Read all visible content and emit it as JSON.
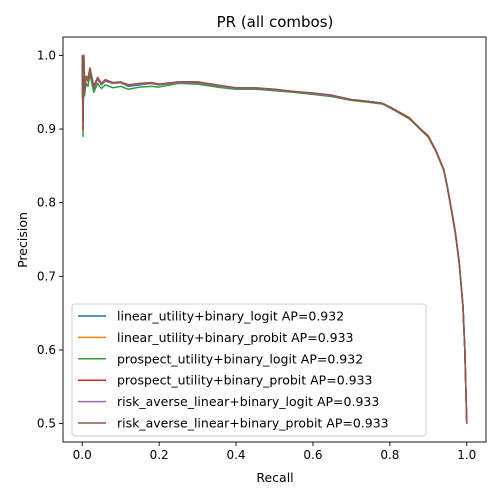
{
  "chart_data": {
    "type": "line",
    "title": "PR (all combos)",
    "xlabel": "Recall",
    "ylabel": "Precision",
    "xlim": [
      -0.05,
      1.05
    ],
    "ylim": [
      0.475,
      1.025
    ],
    "xticks": [
      0.0,
      0.2,
      0.4,
      0.6,
      0.8,
      1.0
    ],
    "xtick_labels": [
      "0.0",
      "0.2",
      "0.4",
      "0.6",
      "0.8",
      "1.0"
    ],
    "yticks": [
      0.5,
      0.6,
      0.7,
      0.8,
      0.9,
      1.0
    ],
    "ytick_labels": [
      "0.5",
      "0.6",
      "0.7",
      "0.8",
      "0.9",
      "1.0"
    ],
    "grid": false,
    "legend_position": "lower-left",
    "series": [
      {
        "name": "linear_utility+binary_logit AP=0.932",
        "color": "#1f77b4",
        "x": [
          0.0,
          0.002,
          0.004,
          0.006,
          0.01,
          0.015,
          0.02,
          0.03,
          0.04,
          0.05,
          0.06,
          0.08,
          0.1,
          0.12,
          0.15,
          0.18,
          0.2,
          0.25,
          0.3,
          0.35,
          0.4,
          0.45,
          0.5,
          0.55,
          0.6,
          0.65,
          0.7,
          0.75,
          0.78,
          0.8,
          0.85,
          0.88,
          0.9,
          0.92,
          0.94,
          0.95,
          0.96,
          0.97,
          0.98,
          0.99,
          0.995,
          1.0
        ],
        "y": [
          1.0,
          0.92,
          1.0,
          0.95,
          0.97,
          0.965,
          0.98,
          0.955,
          0.968,
          0.96,
          0.965,
          0.962,
          0.963,
          0.958,
          0.96,
          0.962,
          0.96,
          0.963,
          0.962,
          0.958,
          0.955,
          0.955,
          0.953,
          0.95,
          0.948,
          0.945,
          0.94,
          0.937,
          0.935,
          0.93,
          0.915,
          0.9,
          0.89,
          0.87,
          0.845,
          0.82,
          0.79,
          0.76,
          0.72,
          0.66,
          0.6,
          0.5
        ]
      },
      {
        "name": "linear_utility+binary_probit AP=0.933",
        "color": "#ff7f0e",
        "x": [
          0.0,
          0.002,
          0.004,
          0.006,
          0.01,
          0.015,
          0.02,
          0.03,
          0.04,
          0.05,
          0.06,
          0.08,
          0.1,
          0.12,
          0.15,
          0.18,
          0.2,
          0.25,
          0.3,
          0.35,
          0.4,
          0.45,
          0.5,
          0.55,
          0.6,
          0.65,
          0.7,
          0.75,
          0.78,
          0.8,
          0.85,
          0.88,
          0.9,
          0.92,
          0.94,
          0.95,
          0.96,
          0.97,
          0.98,
          0.99,
          0.995,
          1.0
        ],
        "y": [
          1.0,
          0.91,
          1.0,
          0.952,
          0.972,
          0.968,
          0.983,
          0.958,
          0.97,
          0.962,
          0.967,
          0.963,
          0.964,
          0.96,
          0.962,
          0.963,
          0.961,
          0.964,
          0.963,
          0.959,
          0.956,
          0.955,
          0.953,
          0.951,
          0.949,
          0.945,
          0.94,
          0.937,
          0.935,
          0.93,
          0.916,
          0.9,
          0.891,
          0.871,
          0.846,
          0.821,
          0.792,
          0.762,
          0.722,
          0.662,
          0.6,
          0.5
        ]
      },
      {
        "name": "prospect_utility+binary_logit AP=0.932",
        "color": "#2ca02c",
        "x": [
          0.0,
          0.002,
          0.004,
          0.006,
          0.01,
          0.015,
          0.02,
          0.03,
          0.04,
          0.05,
          0.06,
          0.08,
          0.1,
          0.12,
          0.15,
          0.18,
          0.2,
          0.25,
          0.3,
          0.35,
          0.4,
          0.45,
          0.5,
          0.55,
          0.6,
          0.65,
          0.7,
          0.75,
          0.78,
          0.8,
          0.85,
          0.88,
          0.9,
          0.92,
          0.94,
          0.95,
          0.96,
          0.97,
          0.98,
          0.99,
          0.995,
          1.0
        ],
        "y": [
          1.0,
          0.89,
          1.0,
          0.945,
          0.962,
          0.958,
          0.975,
          0.95,
          0.962,
          0.955,
          0.96,
          0.956,
          0.958,
          0.954,
          0.957,
          0.958,
          0.957,
          0.962,
          0.961,
          0.957,
          0.954,
          0.954,
          0.952,
          0.95,
          0.947,
          0.944,
          0.939,
          0.936,
          0.934,
          0.929,
          0.914,
          0.899,
          0.889,
          0.869,
          0.844,
          0.819,
          0.789,
          0.759,
          0.719,
          0.659,
          0.6,
          0.5
        ]
      },
      {
        "name": "prospect_utility+binary_probit AP=0.933",
        "color": "#d62728",
        "x": [
          0.0,
          0.002,
          0.004,
          0.006,
          0.01,
          0.015,
          0.02,
          0.03,
          0.04,
          0.05,
          0.06,
          0.08,
          0.1,
          0.12,
          0.15,
          0.18,
          0.2,
          0.25,
          0.3,
          0.35,
          0.4,
          0.45,
          0.5,
          0.55,
          0.6,
          0.65,
          0.7,
          0.75,
          0.78,
          0.8,
          0.85,
          0.88,
          0.9,
          0.92,
          0.94,
          0.95,
          0.96,
          0.97,
          0.98,
          0.99,
          0.995,
          1.0
        ],
        "y": [
          1.0,
          0.9,
          1.0,
          0.95,
          0.97,
          0.966,
          0.981,
          0.956,
          0.968,
          0.961,
          0.966,
          0.962,
          0.963,
          0.959,
          0.961,
          0.962,
          0.96,
          0.964,
          0.964,
          0.959,
          0.956,
          0.955,
          0.954,
          0.951,
          0.948,
          0.945,
          0.94,
          0.937,
          0.935,
          0.93,
          0.915,
          0.9,
          0.89,
          0.87,
          0.845,
          0.82,
          0.79,
          0.76,
          0.72,
          0.66,
          0.6,
          0.5
        ]
      },
      {
        "name": "risk_averse_linear+binary_logit AP=0.933",
        "color": "#9467bd",
        "x": [
          0.0,
          0.002,
          0.004,
          0.006,
          0.01,
          0.015,
          0.02,
          0.03,
          0.04,
          0.05,
          0.06,
          0.08,
          0.1,
          0.12,
          0.15,
          0.18,
          0.2,
          0.25,
          0.3,
          0.35,
          0.4,
          0.45,
          0.5,
          0.55,
          0.6,
          0.65,
          0.7,
          0.75,
          0.78,
          0.8,
          0.85,
          0.88,
          0.9,
          0.92,
          0.94,
          0.95,
          0.96,
          0.97,
          0.98,
          0.99,
          0.995,
          1.0
        ],
        "y": [
          1.0,
          0.905,
          1.0,
          0.951,
          0.971,
          0.967,
          0.982,
          0.957,
          0.969,
          0.961,
          0.966,
          0.962,
          0.963,
          0.959,
          0.961,
          0.962,
          0.96,
          0.963,
          0.963,
          0.959,
          0.955,
          0.955,
          0.953,
          0.951,
          0.948,
          0.945,
          0.94,
          0.937,
          0.935,
          0.93,
          0.915,
          0.9,
          0.89,
          0.87,
          0.845,
          0.82,
          0.79,
          0.76,
          0.72,
          0.66,
          0.6,
          0.5
        ]
      },
      {
        "name": "risk_averse_linear+binary_probit AP=0.933",
        "color": "#8c564b",
        "x": [
          0.0,
          0.002,
          0.004,
          0.006,
          0.01,
          0.015,
          0.02,
          0.03,
          0.04,
          0.05,
          0.06,
          0.08,
          0.1,
          0.12,
          0.15,
          0.18,
          0.2,
          0.25,
          0.3,
          0.35,
          0.4,
          0.45,
          0.5,
          0.55,
          0.6,
          0.65,
          0.7,
          0.75,
          0.78,
          0.8,
          0.85,
          0.88,
          0.9,
          0.92,
          0.94,
          0.95,
          0.96,
          0.97,
          0.98,
          0.99,
          0.995,
          1.0
        ],
        "y": [
          1.0,
          0.908,
          1.0,
          0.953,
          0.972,
          0.968,
          0.983,
          0.958,
          0.97,
          0.962,
          0.967,
          0.963,
          0.964,
          0.96,
          0.962,
          0.963,
          0.961,
          0.964,
          0.964,
          0.96,
          0.956,
          0.956,
          0.954,
          0.951,
          0.949,
          0.946,
          0.94,
          0.937,
          0.935,
          0.93,
          0.915,
          0.9,
          0.89,
          0.87,
          0.845,
          0.82,
          0.79,
          0.76,
          0.72,
          0.66,
          0.6,
          0.5
        ]
      }
    ]
  }
}
